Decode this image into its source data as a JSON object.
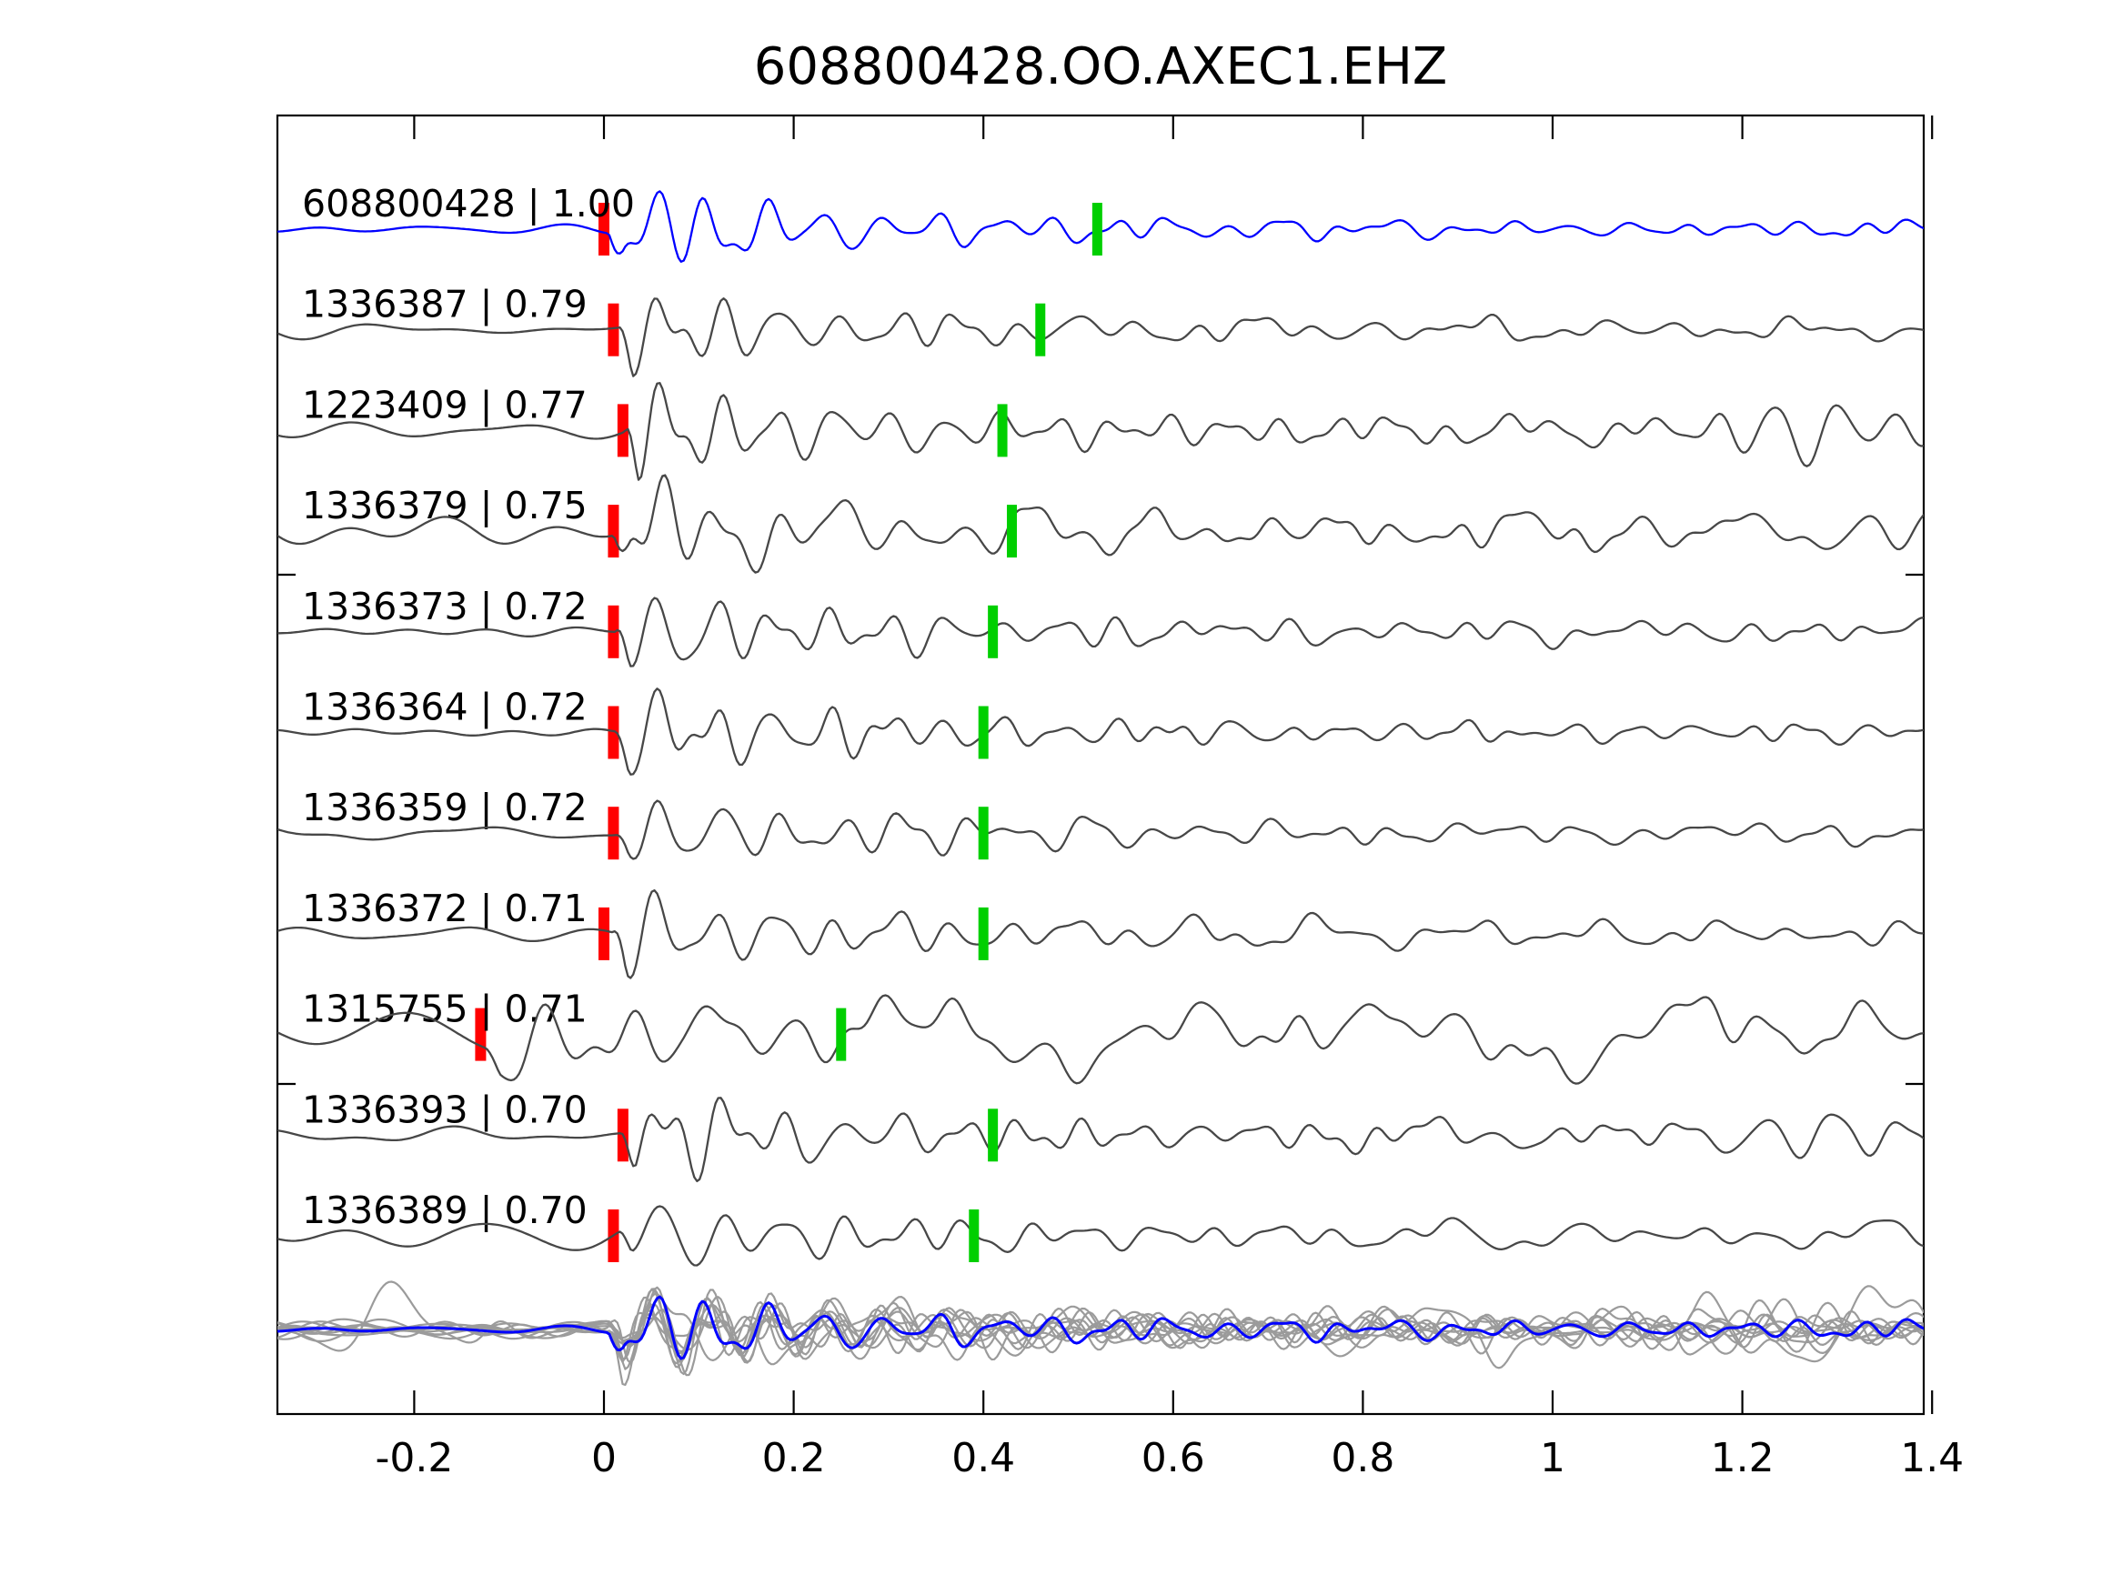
{
  "title": "608800428.OO.AXEC1.EHZ",
  "colors": {
    "reference_trace": "#0000ff",
    "member_trace": "#474747",
    "stack_member": "#9b9b9b",
    "stack_reference": "#0000ff",
    "pick_marker": "#ff0000",
    "window_marker": "#00cf00",
    "axis": "#000000"
  },
  "chart_data": {
    "type": "line",
    "title": "608800428.OO.AXEC1.EHZ",
    "xlabel": "",
    "ylabel": "",
    "xlim": [
      -0.344,
      1.391
    ],
    "grid": false,
    "legend": "none",
    "x_ticks": [
      {
        "v": -0.2,
        "label": "-0.2"
      },
      {
        "v": 0.0,
        "label": "0"
      },
      {
        "v": 0.2,
        "label": "0.2"
      },
      {
        "v": 0.4,
        "label": "0.4"
      },
      {
        "v": 0.6,
        "label": "0.6"
      },
      {
        "v": 0.8,
        "label": "0.8"
      },
      {
        "v": 1.0,
        "label": "1"
      },
      {
        "v": 1.2,
        "label": "1.2"
      },
      {
        "v": 1.4,
        "label": "1.4"
      }
    ],
    "traces": [
      {
        "label": "608800428 | 1.00",
        "id": "608800428",
        "correlation": 1.0,
        "red_pick": 0.0,
        "green_pick": 0.52,
        "is_reference": true,
        "waveform": {
          "noise": 4,
          "nfreq": 1.0,
          "amp": 58,
          "coda": 7,
          "freq": 16.5,
          "seed": 11,
          "onset": 0.005,
          "late": null
        }
      },
      {
        "label": "1336387 | 0.79",
        "id": "1336387",
        "correlation": 0.79,
        "red_pick": 0.01,
        "green_pick": 0.46,
        "is_reference": false,
        "waveform": {
          "noise": 7,
          "nfreq": 1.0,
          "amp": 52,
          "coda": 8,
          "freq": 16.0,
          "seed": 22,
          "onset": 0.015,
          "late": null
        }
      },
      {
        "label": "1223409 | 0.77",
        "id": "1223409",
        "correlation": 0.77,
        "red_pick": 0.02,
        "green_pick": 0.42,
        "is_reference": false,
        "waveform": {
          "noise": 7,
          "nfreq": 0.9,
          "amp": 60,
          "coda": 12,
          "freq": 17.0,
          "seed": 33,
          "onset": 0.022,
          "late": {
            "t": 1.24,
            "amp": 25,
            "f": 15
          }
        }
      },
      {
        "label": "1336379 | 0.75",
        "id": "1336379",
        "correlation": 0.75,
        "red_pick": 0.01,
        "green_pick": 0.43,
        "is_reference": false,
        "waveform": {
          "noise": 13,
          "nfreq": 0.9,
          "amp": 56,
          "coda": 12,
          "freq": 15.5,
          "seed": 44,
          "onset": 0.01,
          "late": {
            "t": 1.34,
            "amp": 20,
            "f": 14
          }
        }
      },
      {
        "label": "1336373 | 0.72",
        "id": "1336373",
        "correlation": 0.72,
        "red_pick": 0.01,
        "green_pick": 0.41,
        "is_reference": false,
        "waveform": {
          "noise": 6,
          "nfreq": 1.1,
          "amp": 55,
          "coda": 10,
          "freq": 16.5,
          "seed": 55,
          "onset": 0.012,
          "late": null
        }
      },
      {
        "label": "1336364 | 0.72",
        "id": "1336364",
        "correlation": 0.72,
        "red_pick": 0.01,
        "green_pick": 0.4,
        "is_reference": false,
        "waveform": {
          "noise": 5,
          "nfreq": 1.0,
          "amp": 57,
          "coda": 9,
          "freq": 16.5,
          "seed": 66,
          "onset": 0.011,
          "late": null
        }
      },
      {
        "label": "1336359 | 0.72",
        "id": "1336359",
        "correlation": 0.72,
        "red_pick": 0.01,
        "green_pick": 0.4,
        "is_reference": false,
        "waveform": {
          "noise": 7,
          "nfreq": 1.0,
          "amp": 50,
          "coda": 9,
          "freq": 15.5,
          "seed": 77,
          "onset": 0.011,
          "late": null
        }
      },
      {
        "label": "1336372 | 0.71",
        "id": "1336372",
        "correlation": 0.71,
        "red_pick": 0.0,
        "green_pick": 0.4,
        "is_reference": false,
        "waveform": {
          "noise": 7,
          "nfreq": 1.0,
          "amp": 52,
          "coda": 9,
          "freq": 16.0,
          "seed": 88,
          "onset": 0.009,
          "late": null
        }
      },
      {
        "label": "1315755 | 0.71",
        "id": "1315755",
        "correlation": 0.71,
        "red_pick": -0.13,
        "green_pick": 0.25,
        "is_reference": false,
        "waveform": {
          "noise": 24,
          "nfreq": 0.55,
          "amp": 50,
          "coda": 22,
          "freq": 11.5,
          "seed": 99,
          "onset": -0.125,
          "late": {
            "t": 1.22,
            "amp": 18,
            "f": 11
          }
        }
      },
      {
        "label": "1336393 | 0.70",
        "id": "1336393",
        "correlation": 0.7,
        "red_pick": 0.02,
        "green_pick": 0.41,
        "is_reference": false,
        "waveform": {
          "noise": 6,
          "nfreq": 1.0,
          "amp": 55,
          "coda": 11,
          "freq": 16.0,
          "seed": 110,
          "onset": 0.018,
          "late": {
            "t": 1.27,
            "amp": 30,
            "f": 14
          }
        }
      },
      {
        "label": "1336389 | 0.70",
        "id": "1336389",
        "correlation": 0.7,
        "red_pick": 0.01,
        "green_pick": 0.39,
        "is_reference": false,
        "waveform": {
          "noise": 10,
          "nfreq": 0.8,
          "amp": 50,
          "coda": 9,
          "freq": 15.5,
          "seed": 121,
          "onset": 0.014,
          "late": null
        }
      }
    ],
    "stack": {
      "description": "all aligned traces overlaid",
      "members": [
        {
          "waveform": {
            "noise": 7,
            "nfreq": 1.0,
            "amp": 48,
            "coda": 12,
            "freq": 16.5,
            "seed": 201,
            "onset": 0.005,
            "late": null
          }
        },
        {
          "waveform": {
            "noise": 8,
            "nfreq": 0.9,
            "amp": 52,
            "coda": 15,
            "freq": 15.5,
            "seed": 202,
            "onset": 0.006,
            "late": {
              "t": 1.24,
              "amp": 18,
              "f": 14
            }
          }
        },
        {
          "waveform": {
            "noise": 6,
            "nfreq": 1.1,
            "amp": 45,
            "coda": 10,
            "freq": 17.0,
            "seed": 203,
            "onset": 0.004,
            "late": null
          }
        },
        {
          "waveform": {
            "noise": 9,
            "nfreq": 1.0,
            "amp": 50,
            "coda": 14,
            "freq": 16.0,
            "seed": 204,
            "onset": 0.007,
            "late": {
              "t": 1.3,
              "amp": 16,
              "f": 15
            }
          }
        },
        {
          "waveform": {
            "noise": 7,
            "nfreq": 0.8,
            "amp": 47,
            "coda": 12,
            "freq": 16.0,
            "seed": 205,
            "onset": 0.005,
            "late": null
          }
        },
        {
          "waveform": {
            "noise": 22,
            "nfreq": 0.55,
            "amp": 46,
            "coda": 18,
            "freq": 12.0,
            "seed": 206,
            "onset": 0.004,
            "late": {
              "t": 1.2,
              "amp": 16,
              "f": 11
            },
            "spikes": [
              {
                "t": -0.235,
                "a": 40,
                "w": 0.05
              },
              {
                "t": -0.115,
                "a": 28,
                "w": 0.03
              }
            ]
          }
        },
        {
          "waveform": {
            "noise": 6,
            "nfreq": 1.0,
            "amp": 53,
            "coda": 11,
            "freq": 16.5,
            "seed": 207,
            "onset": 0.006,
            "late": null
          }
        },
        {
          "waveform": {
            "noise": 8,
            "nfreq": 0.9,
            "amp": 49,
            "coda": 13,
            "freq": 15.5,
            "seed": 208,
            "onset": 0.005,
            "late": {
              "t": 1.27,
              "amp": 20,
              "f": 14
            }
          }
        },
        {
          "waveform": {
            "noise": 7,
            "nfreq": 1.0,
            "amp": 51,
            "coda": 10,
            "freq": 16.0,
            "seed": 209,
            "onset": 0.006,
            "late": null
          }
        },
        {
          "waveform": {
            "noise": 6,
            "nfreq": 1.1,
            "amp": 48,
            "coda": 12,
            "freq": 17.0,
            "seed": 210,
            "onset": 0.005,
            "late": null
          }
        }
      ],
      "reference_overlay": {
        "waveform": {
          "noise": 3,
          "nfreq": 1.0,
          "amp": 50,
          "coda": 9,
          "freq": 16.5,
          "seed": 11,
          "onset": 0.005,
          "late": null
        }
      }
    }
  }
}
